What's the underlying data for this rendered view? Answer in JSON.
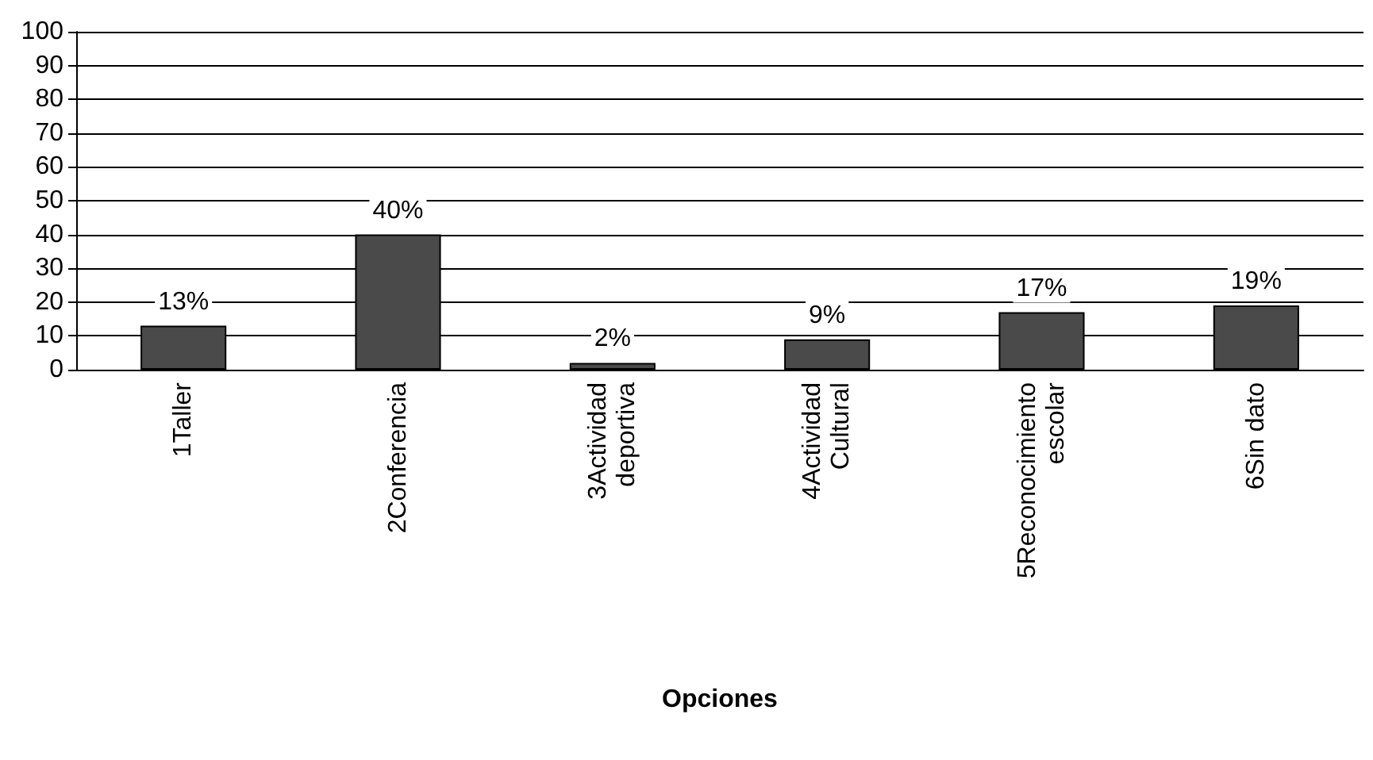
{
  "chart_data": {
    "type": "bar",
    "xlabel": "Opciones",
    "categories": [
      "1Taller",
      "2Conferencia",
      "3Actividad\ndeportiva",
      "4Actividad\nCultural",
      "5Reconocimiento\nescolar",
      "6Sin dato"
    ],
    "values": [
      13,
      40,
      2,
      9,
      17,
      19
    ],
    "value_labels": [
      "13%",
      "40%",
      "2%",
      "9%",
      "17%",
      "19%"
    ],
    "color": "#4a4a4a",
    "ylim": [
      0,
      100
    ],
    "yticks": [
      0,
      10,
      20,
      30,
      40,
      50,
      60,
      70,
      80,
      90,
      100
    ],
    "grid": "y"
  }
}
